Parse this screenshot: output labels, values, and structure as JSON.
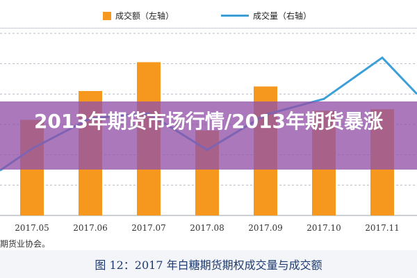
{
  "chart_data": {
    "type": "bar",
    "categories": [
      "2017.05",
      "2017.06",
      "2017.07",
      "2017.08",
      "2017.09",
      "2017.10",
      "2017.11"
    ],
    "series": [
      {
        "name": "成交额（左轴）",
        "type": "bar",
        "values": [
          63,
          82,
          101,
          56,
          85,
          69,
          70
        ]
      },
      {
        "name": "成交量（右轴）",
        "type": "line",
        "values": [
          55,
          80,
          84,
          54,
          83,
          96,
          130
        ]
      }
    ],
    "ylim_left": [
      0,
      120
    ],
    "ylim_right": [
      0,
      150
    ],
    "grid": true,
    "legend_placement": "top"
  },
  "overlay": {
    "title": "2013年期货市场行情/2013年期货暴涨"
  },
  "source_text": "期货业协会。",
  "caption": "图 12：2017 年白糖期货期权成交量与成交额",
  "colors": {
    "bar": "#f6981e",
    "line": "#3d9fd8",
    "overlay": "#9252a8",
    "caption": "#1e3a6e"
  }
}
